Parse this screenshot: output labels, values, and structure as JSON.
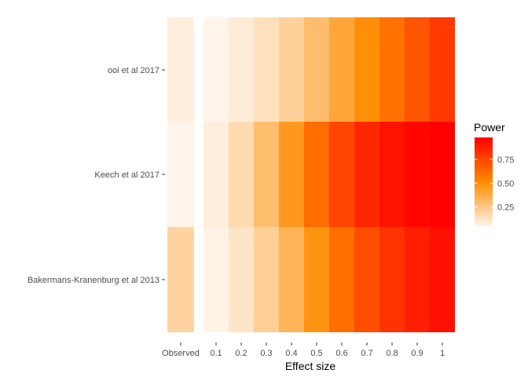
{
  "chart_data": {
    "type": "heatmap",
    "xlabel": "Effect size",
    "ylabel": "",
    "x_categories": [
      "Observed",
      "0.1",
      "0.2",
      "0.3",
      "0.4",
      "0.5",
      "0.6",
      "0.7",
      "0.8",
      "0.9",
      "1"
    ],
    "y_categories": [
      "Bakermans-Kranenburg et al 2013",
      "Keech et al 2017",
      "ooi et al 2017"
    ],
    "cells": [
      {
        "study": "ooi et al 2017",
        "values": [
          0.08,
          0.05,
          0.09,
          0.14,
          0.21,
          0.3,
          0.4,
          0.5,
          0.6,
          0.7,
          0.79
        ]
      },
      {
        "study": "Keech et al 2017",
        "values": [
          0.05,
          0.08,
          0.17,
          0.3,
          0.46,
          0.62,
          0.75,
          0.85,
          0.92,
          0.96,
          0.98
        ]
      },
      {
        "study": "Bakermans-Kranenburg et al 2013",
        "values": [
          0.2,
          0.06,
          0.12,
          0.22,
          0.34,
          0.48,
          0.61,
          0.72,
          0.81,
          0.88,
          0.93
        ]
      }
    ],
    "legend": {
      "title": "Power",
      "ticks": [
        0.25,
        0.5,
        0.75
      ],
      "tick_labels": [
        "0.25",
        "0.50",
        "0.75"
      ],
      "range": [
        0.05,
        0.98
      ],
      "low_color": "#fff5eb",
      "mid_color": "#ff8c00",
      "high_color": "#ff0000",
      "placement": "right"
    },
    "grid": false
  }
}
